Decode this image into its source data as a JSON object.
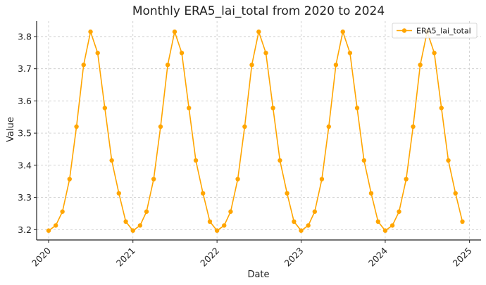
{
  "chart_data": {
    "type": "line",
    "title": "Monthly ERA5_lai_total from 2020 to 2024",
    "xlabel": "Date",
    "ylabel": "Value",
    "x_ticks": [
      "2020",
      "2021",
      "2022",
      "2023",
      "2024",
      "2025"
    ],
    "y_ticks": [
      "3.2",
      "3.3",
      "3.4",
      "3.5",
      "3.6",
      "3.7",
      "3.8"
    ],
    "xlim": [
      "2019-11-10",
      "2025-02-20"
    ],
    "ylim": [
      3.168,
      3.848
    ],
    "grid": true,
    "legend_position": "top-right",
    "colors": {
      "series": "#FFA500"
    },
    "series": [
      {
        "name": "ERA5_lai_total",
        "x": [
          "2020-01-01",
          "2020-02-01",
          "2020-03-01",
          "2020-04-01",
          "2020-05-01",
          "2020-06-01",
          "2020-07-01",
          "2020-08-01",
          "2020-09-01",
          "2020-10-01",
          "2020-11-01",
          "2020-12-01",
          "2021-01-01",
          "2021-02-01",
          "2021-03-01",
          "2021-04-01",
          "2021-05-01",
          "2021-06-01",
          "2021-07-01",
          "2021-08-01",
          "2021-09-01",
          "2021-10-01",
          "2021-11-01",
          "2021-12-01",
          "2022-01-01",
          "2022-02-01",
          "2022-03-01",
          "2022-04-01",
          "2022-05-01",
          "2022-06-01",
          "2022-07-01",
          "2022-08-01",
          "2022-09-01",
          "2022-10-01",
          "2022-11-01",
          "2022-12-01",
          "2023-01-01",
          "2023-02-01",
          "2023-03-01",
          "2023-04-01",
          "2023-05-01",
          "2023-06-01",
          "2023-07-01",
          "2023-08-01",
          "2023-09-01",
          "2023-10-01",
          "2023-11-01",
          "2023-12-01",
          "2024-01-01",
          "2024-02-01",
          "2024-03-01",
          "2024-04-01",
          "2024-05-01",
          "2024-06-01",
          "2024-07-01",
          "2024-08-01",
          "2024-09-01",
          "2024-10-01",
          "2024-11-01",
          "2024-12-01"
        ],
        "values": [
          3.197,
          3.213,
          3.256,
          3.357,
          3.52,
          3.712,
          3.815,
          3.749,
          3.578,
          3.415,
          3.313,
          3.225,
          3.197,
          3.213,
          3.256,
          3.357,
          3.52,
          3.712,
          3.815,
          3.749,
          3.578,
          3.415,
          3.313,
          3.225,
          3.197,
          3.213,
          3.256,
          3.357,
          3.52,
          3.712,
          3.815,
          3.749,
          3.578,
          3.415,
          3.313,
          3.225,
          3.197,
          3.213,
          3.256,
          3.357,
          3.52,
          3.712,
          3.815,
          3.749,
          3.578,
          3.415,
          3.313,
          3.225,
          3.197,
          3.213,
          3.256,
          3.357,
          3.52,
          3.712,
          3.815,
          3.749,
          3.578,
          3.415,
          3.313,
          3.225
        ]
      }
    ]
  }
}
